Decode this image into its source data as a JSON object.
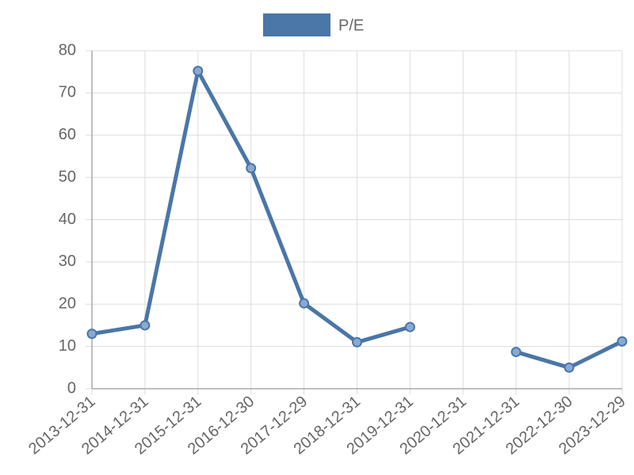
{
  "chart_data": {
    "type": "line",
    "categories": [
      "2013-12-31",
      "2014-12-31",
      "2015-12-31",
      "2016-12-30",
      "2017-12-29",
      "2018-12-31",
      "2019-12-31",
      "2020-12-31",
      "2021-12-31",
      "2022-12-30",
      "2023-12-29"
    ],
    "series": [
      {
        "name": "P/E",
        "color": "#4a76a8",
        "values": [
          13,
          15,
          75.2,
          52.2,
          20.2,
          11,
          14.6,
          null,
          8.7,
          5,
          11.2
        ]
      }
    ],
    "ylim": [
      0,
      80
    ],
    "yticks": [
      0,
      10,
      20,
      30,
      40,
      50,
      60,
      70,
      80
    ],
    "grid": true,
    "legend": "top"
  }
}
